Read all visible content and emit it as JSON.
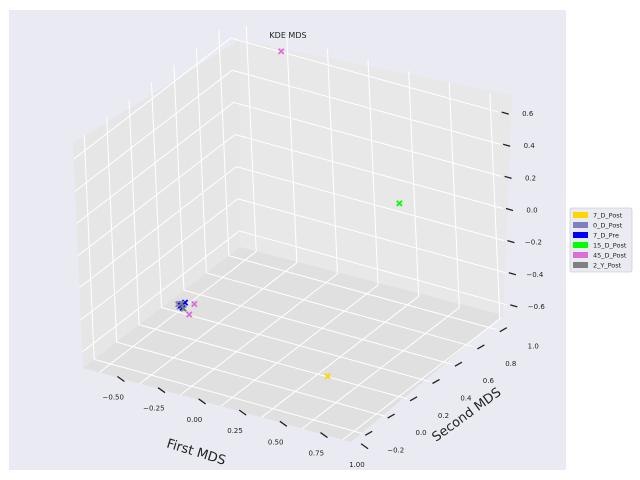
{
  "chart_data": {
    "type": "scatter",
    "projection": "3d",
    "title": "KDE MDS",
    "xlabel": "First MDS",
    "ylabel": "Second MDS",
    "zlabel": "",
    "xlim": [
      -0.6,
      1.05
    ],
    "ylim": [
      -0.3,
      1.1
    ],
    "zlim": [
      -0.7,
      0.7
    ],
    "x_ticks": [
      "−0.50",
      "−0.25",
      "0.00",
      "0.25",
      "0.50",
      "0.75",
      "1.00"
    ],
    "y_ticks": [
      "−0.2",
      "0.0",
      "0.2",
      "0.4",
      "0.6",
      "0.8",
      "1.0"
    ],
    "z_ticks": [
      "−0.6",
      "−0.4",
      "−0.2",
      "0.0",
      "0.2",
      "0.4",
      "0.6"
    ],
    "x_tick_values": [
      -0.5,
      -0.25,
      0.0,
      0.25,
      0.5,
      0.75,
      1.0
    ],
    "y_tick_values": [
      -0.2,
      0.0,
      0.2,
      0.4,
      0.6,
      0.8,
      1.0
    ],
    "z_tick_values": [
      -0.6,
      -0.4,
      -0.2,
      0.0,
      0.2,
      0.4,
      0.6
    ],
    "grid": true,
    "marker": "x",
    "legend_position": "right",
    "series": [
      {
        "name": "7_D_Post",
        "color": "#ffd700",
        "points": [
          [
            0.85,
            -0.2,
            -0.4
          ]
        ]
      },
      {
        "name": "0_D_Post",
        "color": "#8080c0",
        "points": [
          [
            -0.2,
            0.0,
            -0.35
          ],
          [
            -0.22,
            0.02,
            -0.37
          ],
          [
            -0.19,
            -0.01,
            -0.36
          ]
        ]
      },
      {
        "name": "7_D_Pre",
        "color": "#0000ff",
        "points": [
          [
            -0.17,
            0.01,
            -0.34
          ],
          [
            -0.21,
            0.03,
            -0.38
          ],
          [
            -0.18,
            0.0,
            -0.37
          ]
        ]
      },
      {
        "name": "15_D_Post",
        "color": "#00ff00",
        "points": [
          [
            0.55,
            0.9,
            0.0
          ]
        ]
      },
      {
        "name": "45_D_Post",
        "color": "#da70d6",
        "points": [
          [
            0.0,
            0.7,
            0.9
          ],
          [
            -0.14,
            0.0,
            -0.4
          ],
          [
            -0.12,
            0.02,
            -0.34
          ]
        ]
      },
      {
        "name": "2_Y_Post",
        "color": "#808080",
        "points": [
          [
            -0.2,
            0.02,
            -0.36
          ],
          [
            -0.18,
            0.01,
            -0.38
          ]
        ]
      }
    ]
  }
}
